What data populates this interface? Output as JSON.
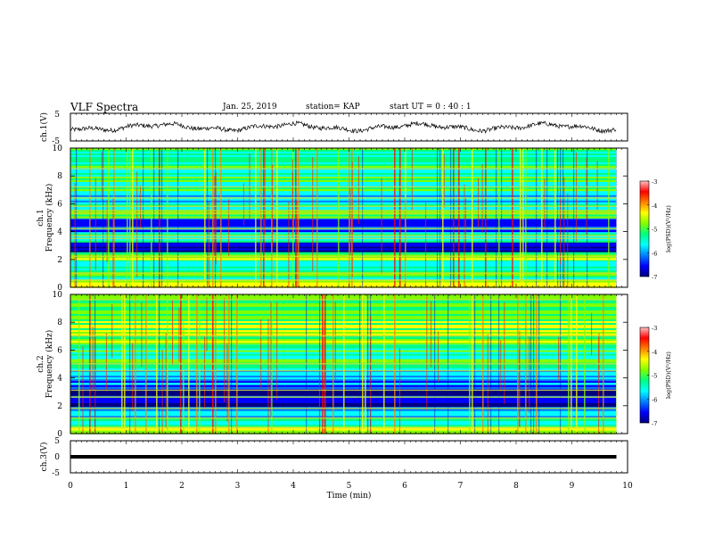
{
  "header": {
    "title": "VLF Spectra",
    "date": "Jan. 25, 2019",
    "station": "station= KAP",
    "start_time": "start  UT =   0 : 40 : 1"
  },
  "chart_data": [
    {
      "type": "line",
      "panel": "ch1-waveform",
      "ylabel": "ch.1(V)",
      "ylim": [
        -5,
        5
      ],
      "y_ticks": [
        "5",
        "-5"
      ],
      "xlim": [
        0,
        10
      ],
      "x_extent_data": [
        0,
        9.8
      ],
      "description_values": {
        "approx_mean": 0,
        "approx_amplitude": 1.5
      }
    },
    {
      "type": "heatmap",
      "panel": "ch1-spectrogram",
      "ylabel_channel": "ch.1",
      "ylabel": "Frequency  (kHz)",
      "ylim": [
        0,
        10
      ],
      "y_ticks": [
        "0",
        "2",
        "4",
        "6",
        "8",
        "10"
      ],
      "xlim": [
        0,
        10
      ],
      "x_extent_data": [
        0,
        9.8
      ],
      "colorbar": {
        "label": "log(PSD)(V²/Hz)",
        "range": [
          -7,
          -3
        ],
        "ticks": [
          "-3",
          "-4",
          "-5",
          "-6",
          "-7"
        ],
        "colormap": [
          "#000080",
          "#0000ff",
          "#0080ff",
          "#00ffff",
          "#00ff80",
          "#80ff00",
          "#ffff00",
          "#ff8000",
          "#ff0000",
          "#ffc0c0"
        ]
      },
      "bands_khz": [
        {
          "from": 0,
          "to": 0.6,
          "level": -4.5
        },
        {
          "from": 0.6,
          "to": 1.2,
          "level": -5.2
        },
        {
          "from": 1.2,
          "to": 2.0,
          "level": -5.4
        },
        {
          "from": 2.0,
          "to": 2.6,
          "level": -4.6
        },
        {
          "from": 2.6,
          "to": 3.3,
          "level": -6.8
        },
        {
          "from": 3.3,
          "to": 4.0,
          "level": -5.5
        },
        {
          "from": 4.0,
          "to": 5.0,
          "level": -6.3
        },
        {
          "from": 5.0,
          "to": 5.6,
          "level": -5.0
        },
        {
          "from": 5.6,
          "to": 7.0,
          "level": -5.6
        },
        {
          "from": 7.0,
          "to": 10.0,
          "level": -5.3
        }
      ],
      "line_khz": [
        0.5,
        1.0,
        2.2,
        3.5,
        3.7,
        4.2,
        5.3,
        5.5,
        5.8,
        6.4,
        7.2,
        8.5
      ]
    },
    {
      "type": "heatmap",
      "panel": "ch2-spectrogram",
      "ylabel_channel": "ch.2",
      "ylabel": "Frequency  (kHz)",
      "ylim": [
        0,
        10
      ],
      "y_ticks": [
        "0",
        "2",
        "4",
        "6",
        "8",
        "10"
      ],
      "xlim": [
        0,
        10
      ],
      "x_extent_data": [
        0,
        9.8
      ],
      "colorbar": {
        "label": "log(PSD)(V²/Hz)",
        "range": [
          -7,
          -3
        ],
        "ticks": [
          "-3",
          "-4",
          "-5",
          "-6",
          "-7"
        ],
        "colormap": [
          "#000080",
          "#0000ff",
          "#0080ff",
          "#00ffff",
          "#00ff80",
          "#80ff00",
          "#ffff00",
          "#ff8000",
          "#ff0000",
          "#ffc0c0"
        ]
      },
      "bands_khz": [
        {
          "from": 0,
          "to": 0.6,
          "level": -4.6
        },
        {
          "from": 0.6,
          "to": 1.4,
          "level": -5.6
        },
        {
          "from": 1.4,
          "to": 2.0,
          "level": -6.0
        },
        {
          "from": 2.0,
          "to": 3.6,
          "level": -6.4
        },
        {
          "from": 3.6,
          "to": 4.8,
          "level": -5.9
        },
        {
          "from": 4.8,
          "to": 6.5,
          "level": -5.3
        },
        {
          "from": 6.5,
          "to": 10.0,
          "level": -4.8
        }
      ],
      "line_khz": [
        0.4,
        1.1,
        1.8,
        2.6,
        3.1,
        4.5,
        5.0,
        7.0,
        9.6
      ]
    },
    {
      "type": "line",
      "panel": "ch3-waveform",
      "ylabel": "ch.3(V)",
      "ylim": [
        -5,
        5
      ],
      "y_ticks": [
        "5",
        "0",
        "-5"
      ],
      "xlim": [
        0,
        10
      ],
      "x_extent_data": [
        0,
        9.8
      ],
      "constant_value": 0,
      "xlabel": "Time  (min)",
      "x_ticks": [
        "0",
        "1",
        "2",
        "3",
        "4",
        "5",
        "6",
        "7",
        "8",
        "9",
        "10"
      ]
    }
  ]
}
